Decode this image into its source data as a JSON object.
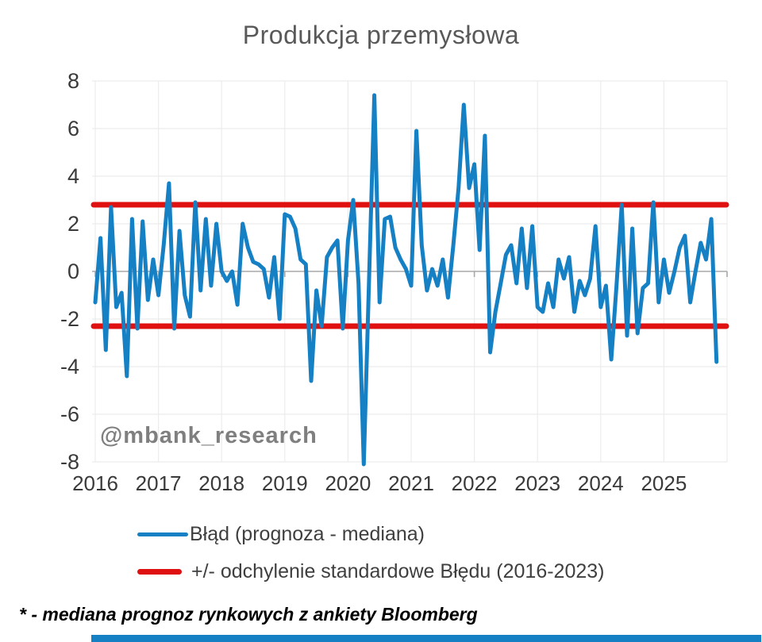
{
  "title": "Produkcja przemysłowa",
  "watermark": "@mbank_research",
  "footnote": "* - mediana prognoz rynkowych z ankiety Bloomberg",
  "legend": [
    {
      "label": "Błąd (prognoza - mediana)",
      "color": "#1680C5"
    },
    {
      "label": "+/- odchylenie standardowe Błędu (2016-2023)",
      "color": "#DF1111"
    }
  ],
  "colors": {
    "line_blue": "#1680C5",
    "line_red": "#DF1111",
    "title_gray": "#595959",
    "tick_label": "#3A3A3A",
    "gridline": "#ECECEC",
    "zero_axis": "#A8A8A8",
    "watermark_gray": "#7F7F7F",
    "bottom_bar": "#1680C5"
  },
  "chart_data": {
    "type": "line",
    "title": "Produkcja przemysłowa",
    "frequency": "monthly",
    "x_start": "2016-01",
    "x_end": "2025-11",
    "x_tick_labels": [
      "2016",
      "2017",
      "2018",
      "2019",
      "2020",
      "2021",
      "2022",
      "2023",
      "2024",
      "2025"
    ],
    "y_tick_labels": [
      "8",
      "6",
      "4",
      "2",
      "0",
      "-2",
      "-4",
      "-6",
      "-8"
    ],
    "y_ticks": [
      8,
      6,
      4,
      2,
      0,
      -2,
      -4,
      -6,
      -8
    ],
    "ylim": [
      -8.5,
      8
    ],
    "grid": true,
    "legend_position": "bottom",
    "series": [
      {
        "name": "Błąd (prognoza - mediana)",
        "color": "#1680C5",
        "values": [
          -1.3,
          1.4,
          -3.3,
          2.7,
          -1.5,
          -0.9,
          -4.4,
          2.2,
          -2.4,
          2.1,
          -1.2,
          0.5,
          -1.0,
          1.1,
          3.7,
          -2.4,
          1.7,
          -1.0,
          -1.9,
          2.9,
          -0.8,
          2.2,
          -0.6,
          2.0,
          0.0,
          -0.4,
          0.0,
          -1.4,
          2.0,
          1.0,
          0.4,
          0.3,
          0.1,
          -1.1,
          0.6,
          -2.0,
          2.4,
          2.3,
          1.8,
          0.5,
          0.3,
          -4.6,
          -0.8,
          -2.3,
          0.6,
          1.0,
          1.3,
          -2.4,
          1.3,
          3.0,
          -0.5,
          -8.1,
          -0.4,
          7.4,
          -1.3,
          2.2,
          2.3,
          1.0,
          0.5,
          0.1,
          -0.6,
          5.9,
          1.1,
          -0.8,
          0.1,
          -0.6,
          0.5,
          -1.1,
          1.1,
          3.5,
          7.0,
          3.5,
          4.5,
          0.9,
          5.7,
          -3.4,
          -1.7,
          -0.5,
          0.7,
          1.1,
          -0.5,
          1.8,
          -0.7,
          1.9,
          -1.5,
          -1.7,
          -0.5,
          -1.5,
          0.5,
          -0.3,
          0.6,
          -1.7,
          -0.4,
          -1.0,
          -0.3,
          1.9,
          -1.5,
          -0.6,
          -3.7,
          -0.6,
          2.8,
          -2.7,
          1.8,
          -2.6,
          -0.7,
          -0.5,
          2.9,
          -1.3,
          0.5,
          -0.9,
          0.0,
          1.0,
          1.5,
          -1.3,
          0.0,
          1.2,
          0.5,
          2.2,
          -3.8
        ]
      }
    ],
    "reference_lines": [
      {
        "name": "+ odchylenie standardowe Błędu (2016-2023)",
        "value": 2.8,
        "color": "#DF1111"
      },
      {
        "name": "- odchylenie standardowe Błędu (2016-2023)",
        "value": -2.3,
        "color": "#DF1111"
      }
    ]
  }
}
